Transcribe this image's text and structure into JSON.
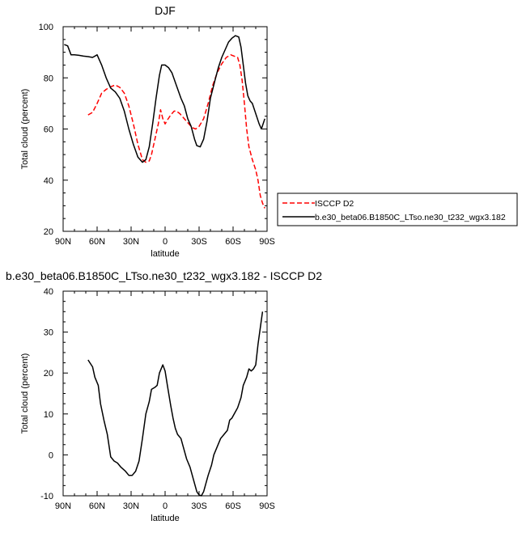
{
  "chart_data": [
    {
      "type": "line",
      "title": "DJF",
      "xlabel": "latitude",
      "ylabel": "Total cloud (percent)",
      "xlim": [
        90,
        -90
      ],
      "ylim": [
        20,
        100
      ],
      "x_ticks": [
        {
          "v": 90,
          "label": "90N"
        },
        {
          "v": 60,
          "label": "60N"
        },
        {
          "v": 30,
          "label": "30N"
        },
        {
          "v": 0,
          "label": "0"
        },
        {
          "v": -30,
          "label": "30S"
        },
        {
          "v": -60,
          "label": "60S"
        },
        {
          "v": -90,
          "label": "90S"
        }
      ],
      "y_ticks": [
        20,
        40,
        60,
        80,
        100
      ],
      "legend_position": "right",
      "series": [
        {
          "name": "ISCCP D2",
          "color": "#ff0000",
          "dash": "dashed",
          "points": [
            [
              68,
              65.5
            ],
            [
              64,
              66.5
            ],
            [
              60,
              70
            ],
            [
              56,
              74
            ],
            [
              52,
              75.5
            ],
            [
              48,
              76.5
            ],
            [
              44,
              77.2
            ],
            [
              40,
              76.3
            ],
            [
              36,
              74
            ],
            [
              32,
              69
            ],
            [
              28,
              62
            ],
            [
              24,
              54
            ],
            [
              20,
              48
            ],
            [
              17,
              47
            ],
            [
              14,
              47.5
            ],
            [
              12,
              50
            ],
            [
              10,
              54
            ],
            [
              6,
              62
            ],
            [
              4,
              67.5
            ],
            [
              2,
              64
            ],
            [
              0,
              62
            ],
            [
              -2,
              63.5
            ],
            [
              -5,
              65.5
            ],
            [
              -8,
              67
            ],
            [
              -10,
              67
            ],
            [
              -13,
              66
            ],
            [
              -16,
              64.5
            ],
            [
              -20,
              62.5
            ],
            [
              -24,
              60.5
            ],
            [
              -27,
              60
            ],
            [
              -30,
              61
            ],
            [
              -34,
              64
            ],
            [
              -38,
              70
            ],
            [
              -42,
              77
            ],
            [
              -46,
              82
            ],
            [
              -50,
              85.5
            ],
            [
              -54,
              88
            ],
            [
              -58,
              89
            ],
            [
              -61,
              88.5
            ],
            [
              -64,
              88
            ],
            [
              -66,
              85
            ],
            [
              -68,
              79
            ],
            [
              -70,
              70
            ],
            [
              -72,
              60
            ],
            [
              -74,
              53
            ],
            [
              -77,
              48
            ],
            [
              -80,
              44
            ],
            [
              -82,
              40
            ],
            [
              -84,
              34
            ],
            [
              -86,
              31
            ],
            [
              -88,
              29
            ]
          ]
        },
        {
          "name": "b.e30_beta06.B1850C_LTso.ne30_t232_wgx3.182",
          "color": "#000000",
          "dash": "solid",
          "points": [
            [
              89,
              93
            ],
            [
              86,
              92.5
            ],
            [
              83,
              89
            ],
            [
              80,
              89
            ],
            [
              76,
              88.8
            ],
            [
              72,
              88.5
            ],
            [
              68,
              88.3
            ],
            [
              64,
              88
            ],
            [
              60,
              89
            ],
            [
              56,
              85
            ],
            [
              52,
              80
            ],
            [
              48,
              76
            ],
            [
              44,
              74.5
            ],
            [
              40,
              72
            ],
            [
              36,
              67
            ],
            [
              32,
              60
            ],
            [
              28,
              54
            ],
            [
              24,
              49
            ],
            [
              20,
              47
            ],
            [
              17,
              48
            ],
            [
              14,
              53
            ],
            [
              11,
              62
            ],
            [
              8,
              72
            ],
            [
              5,
              81
            ],
            [
              3,
              85
            ],
            [
              0,
              85
            ],
            [
              -3,
              84
            ],
            [
              -6,
              82
            ],
            [
              -10,
              77
            ],
            [
              -14,
              72
            ],
            [
              -17,
              69
            ],
            [
              -20,
              64
            ],
            [
              -23,
              61
            ],
            [
              -26,
              56
            ],
            [
              -28,
              53.5
            ],
            [
              -31,
              53
            ],
            [
              -34,
              56
            ],
            [
              -37,
              63
            ],
            [
              -40,
              72
            ],
            [
              -44,
              79
            ],
            [
              -47,
              84
            ],
            [
              -50,
              88
            ],
            [
              -53,
              91
            ],
            [
              -56,
              94
            ],
            [
              -59,
              95.5
            ],
            [
              -62,
              96.5
            ],
            [
              -65,
              96
            ],
            [
              -67,
              92
            ],
            [
              -69,
              85
            ],
            [
              -71,
              78
            ],
            [
              -73,
              73
            ],
            [
              -75,
              71
            ],
            [
              -77,
              70
            ],
            [
              -80,
              66
            ],
            [
              -83,
              62
            ],
            [
              -85,
              60
            ],
            [
              -88,
              64
            ]
          ]
        }
      ]
    },
    {
      "type": "line",
      "title": "b.e30_beta06.B1850C_LTso.ne30_t232_wgx3.182 - ISCCP D2",
      "xlabel": "latitude",
      "ylabel": "Total cloud (percent)",
      "xlim": [
        90,
        -90
      ],
      "ylim": [
        -10,
        40
      ],
      "x_ticks": [
        {
          "v": 90,
          "label": "90N"
        },
        {
          "v": 60,
          "label": "60N"
        },
        {
          "v": 30,
          "label": "30N"
        },
        {
          "v": 0,
          "label": "0"
        },
        {
          "v": -30,
          "label": "30S"
        },
        {
          "v": -60,
          "label": "60S"
        },
        {
          "v": -90,
          "label": "90S"
        }
      ],
      "y_ticks": [
        -10,
        0,
        10,
        20,
        30,
        40
      ],
      "series": [
        {
          "name": "",
          "color": "#000000",
          "dash": "solid",
          "points": [
            [
              68,
              23.2
            ],
            [
              64,
              21.5
            ],
            [
              62,
              19
            ],
            [
              59,
              17
            ],
            [
              57,
              12.5
            ],
            [
              54,
              8.5
            ],
            [
              51,
              5
            ],
            [
              48,
              -0.5
            ],
            [
              45,
              -1.5
            ],
            [
              42,
              -2
            ],
            [
              39,
              -3
            ],
            [
              35,
              -4
            ],
            [
              32,
              -5
            ],
            [
              29,
              -5
            ],
            [
              26,
              -4
            ],
            [
              23,
              -1.5
            ],
            [
              20,
              4
            ],
            [
              17,
              10
            ],
            [
              14,
              13
            ],
            [
              12,
              16
            ],
            [
              9,
              16.5
            ],
            [
              7,
              17
            ],
            [
              5,
              20
            ],
            [
              2,
              22
            ],
            [
              0,
              20.5
            ],
            [
              -2,
              17
            ],
            [
              -5,
              12
            ],
            [
              -7,
              9
            ],
            [
              -9,
              6.5
            ],
            [
              -11,
              5
            ],
            [
              -14,
              4
            ],
            [
              -16,
              2
            ],
            [
              -19,
              -1
            ],
            [
              -22,
              -3
            ],
            [
              -25,
              -6
            ],
            [
              -28,
              -9
            ],
            [
              -30,
              -9.8
            ],
            [
              -32,
              -10
            ],
            [
              -34,
              -9
            ],
            [
              -36,
              -7
            ],
            [
              -38,
              -5
            ],
            [
              -41,
              -2.5
            ],
            [
              -43,
              0
            ],
            [
              -46,
              2
            ],
            [
              -49,
              4
            ],
            [
              -52,
              5
            ],
            [
              -55,
              6
            ],
            [
              -57,
              8.5
            ],
            [
              -59,
              9
            ],
            [
              -62,
              10.5
            ],
            [
              -64,
              11.5
            ],
            [
              -67,
              14
            ],
            [
              -69,
              17
            ],
            [
              -72,
              19
            ],
            [
              -74,
              21
            ],
            [
              -76,
              20.5
            ],
            [
              -78,
              21
            ],
            [
              -80,
              22
            ],
            [
              -82,
              27
            ],
            [
              -84,
              31
            ],
            [
              -86,
              35
            ]
          ]
        }
      ]
    }
  ]
}
